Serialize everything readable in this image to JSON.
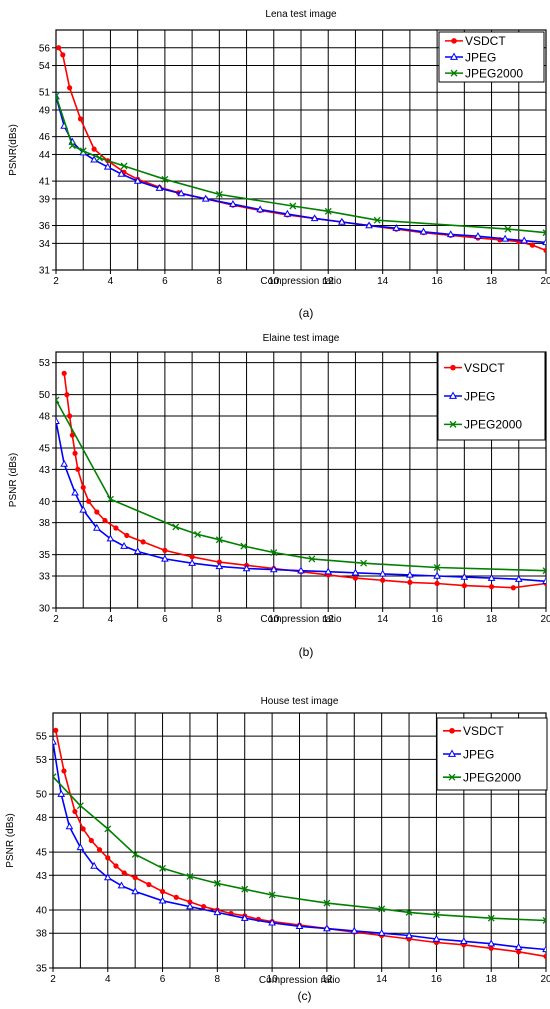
{
  "chart_data": [
    {
      "type": "line",
      "title": "Lena test image",
      "xlabel": "Compression ratio",
      "ylabel": "PSNR(dBs)",
      "caption": "(a)",
      "xlim": [
        2,
        20
      ],
      "ylim": [
        31,
        58
      ],
      "xticks": [
        "2",
        "4",
        "6",
        "8",
        "10",
        "12",
        "14",
        "16",
        "18",
        "20"
      ],
      "yticks": [
        "31",
        "34",
        "36",
        "39",
        "41",
        "44",
        "46",
        "49",
        "51",
        "54",
        "56"
      ],
      "grid": true,
      "legend": "top-right",
      "series": [
        {
          "name": "VSDCT",
          "color": "#ff0000",
          "marker": "dot",
          "x": [
            2.1,
            2.25,
            2.5,
            2.9,
            3.4,
            3.9,
            4.5,
            5,
            5.8,
            6.5,
            7.5,
            8.5,
            9.5,
            10.5,
            11.5,
            12.5,
            13.5,
            14.5,
            15.5,
            16.5,
            17.5,
            18.3,
            19,
            19.5,
            20
          ],
          "y": [
            56,
            55.2,
            51.5,
            48,
            44.6,
            43.3,
            42,
            41.2,
            40.3,
            39.7,
            39,
            38.3,
            37.7,
            37.2,
            36.8,
            36.4,
            36,
            35.6,
            35.2,
            34.9,
            34.6,
            34.4,
            34.2,
            33.8,
            33.2
          ]
        },
        {
          "name": "JPEG",
          "color": "#0000ff",
          "marker": "triangle",
          "x": [
            2,
            2.3,
            2.6,
            3,
            3.4,
            3.9,
            4.4,
            5,
            5.8,
            6.6,
            7.5,
            8.5,
            9.5,
            10.5,
            11.5,
            12.5,
            13.5,
            14.5,
            15.5,
            16.5,
            17.5,
            18.5,
            19.2,
            20
          ],
          "y": [
            50.5,
            47.2,
            45.4,
            44.2,
            43.4,
            42.6,
            41.8,
            41,
            40.2,
            39.6,
            39,
            38.4,
            37.8,
            37.3,
            36.8,
            36.4,
            36,
            35.7,
            35.3,
            35,
            34.8,
            34.5,
            34.3,
            34.1
          ]
        },
        {
          "name": "JPEG2000",
          "color": "#008000",
          "marker": "x",
          "x": [
            2,
            2.6,
            3,
            3.6,
            4.5,
            6,
            8,
            10.7,
            12,
            13.8,
            18.6,
            20
          ],
          "y": [
            50.6,
            45,
            44.4,
            43.6,
            42.7,
            41.2,
            39.5,
            38.2,
            37.6,
            36.6,
            35.6,
            35.2
          ]
        }
      ]
    },
    {
      "type": "line",
      "title": "Elaine test image",
      "xlabel": "Compression ratio",
      "ylabel": "PSNR (dBs)",
      "caption": "(b)",
      "xlim": [
        2,
        20
      ],
      "ylim": [
        30,
        54
      ],
      "xticks": [
        "2",
        "4",
        "6",
        "8",
        "10",
        "12",
        "14",
        "16",
        "18",
        "20"
      ],
      "yticks": [
        "30",
        "33",
        "35",
        "38",
        "40",
        "43",
        "45",
        "48",
        "50",
        "53"
      ],
      "grid": true,
      "legend": "top-right",
      "series": [
        {
          "name": "VSDCT",
          "color": "#ff0000",
          "marker": "dot",
          "x": [
            2.3,
            2.4,
            2.5,
            2.6,
            2.7,
            2.8,
            3,
            3.2,
            3.5,
            3.8,
            4.2,
            4.6,
            5.2,
            6,
            7,
            8,
            9,
            10,
            11,
            12,
            13,
            14,
            15,
            16,
            17,
            18,
            18.8,
            20
          ],
          "y": [
            52,
            50,
            48,
            46.2,
            44.5,
            43,
            41.3,
            40,
            39,
            38.2,
            37.5,
            36.8,
            36.2,
            35.4,
            34.8,
            34.3,
            34,
            33.7,
            33.4,
            33.1,
            32.8,
            32.6,
            32.4,
            32.3,
            32.1,
            32,
            31.9,
            32.3
          ]
        },
        {
          "name": "JPEG",
          "color": "#0000ff",
          "marker": "triangle",
          "x": [
            2,
            2.3,
            2.7,
            3,
            3.5,
            4,
            4.5,
            5,
            6,
            7,
            8,
            9,
            10,
            11,
            12,
            13,
            14,
            15,
            16,
            17,
            18,
            19,
            20
          ],
          "y": [
            47.5,
            43.5,
            40.8,
            39.2,
            37.5,
            36.5,
            35.8,
            35.3,
            34.6,
            34.2,
            33.9,
            33.7,
            33.6,
            33.5,
            33.4,
            33.3,
            33.2,
            33.1,
            33,
            32.9,
            32.8,
            32.7,
            32.5
          ]
        },
        {
          "name": "JPEG2000",
          "color": "#008000",
          "marker": "x",
          "x": [
            2,
            4,
            6.4,
            7.2,
            8,
            8.9,
            10,
            11.4,
            13.3,
            16,
            20
          ],
          "y": [
            49.5,
            40.2,
            37.6,
            36.9,
            36.4,
            35.8,
            35.2,
            34.6,
            34.2,
            33.8,
            33.5
          ]
        }
      ]
    },
    {
      "type": "line",
      "title": "House test image",
      "xlabel": "Compression ratio",
      "ylabel": "PSNR (dBs)",
      "caption": "(c)",
      "xlim": [
        2,
        20
      ],
      "ylim": [
        35,
        57
      ],
      "xticks": [
        "2",
        "4",
        "6",
        "8",
        "10",
        "12",
        "14",
        "16",
        "18",
        "20"
      ],
      "yticks": [
        "35",
        "38",
        "40",
        "43",
        "45",
        "48",
        "50",
        "53",
        "55"
      ],
      "grid": true,
      "legend": "top-right",
      "series": [
        {
          "name": "VSDCT",
          "color": "#ff0000",
          "marker": "dot",
          "x": [
            2.1,
            2.4,
            2.8,
            3.1,
            3.4,
            3.7,
            4,
            4.3,
            4.6,
            5,
            5.5,
            6,
            6.5,
            7,
            7.5,
            8,
            8.5,
            9,
            9.5,
            10,
            11,
            12,
            13,
            14,
            15,
            16,
            17,
            18,
            19,
            20
          ],
          "y": [
            55.5,
            52,
            48.5,
            47,
            46,
            45.2,
            44.5,
            43.8,
            43.2,
            42.8,
            42.2,
            41.6,
            41.1,
            40.7,
            40.3,
            40,
            39.7,
            39.5,
            39.2,
            39,
            38.7,
            38.4,
            38.1,
            37.8,
            37.5,
            37.2,
            37,
            36.7,
            36.4,
            36
          ]
        },
        {
          "name": "JPEG",
          "color": "#0000ff",
          "marker": "triangle",
          "x": [
            2,
            2.3,
            2.6,
            3,
            3.5,
            4,
            4.5,
            5,
            6,
            7,
            8,
            9,
            10,
            11,
            12,
            13,
            14,
            15,
            16,
            17,
            18,
            19,
            20
          ],
          "y": [
            54.5,
            50,
            47.2,
            45.4,
            43.8,
            42.8,
            42.1,
            41.6,
            40.8,
            40.3,
            39.8,
            39.3,
            38.9,
            38.6,
            38.4,
            38.2,
            38,
            37.8,
            37.5,
            37.3,
            37.1,
            36.8,
            36.6
          ]
        },
        {
          "name": "JPEG2000",
          "color": "#008000",
          "marker": "x",
          "x": [
            2,
            3,
            4,
            5,
            6,
            7,
            8,
            9,
            10,
            12,
            14,
            15,
            16,
            18,
            20
          ],
          "y": [
            51.5,
            49,
            47,
            44.8,
            43.6,
            42.9,
            42.3,
            41.8,
            41.3,
            40.6,
            40.1,
            39.8,
            39.6,
            39.3,
            39.1
          ]
        }
      ]
    }
  ]
}
